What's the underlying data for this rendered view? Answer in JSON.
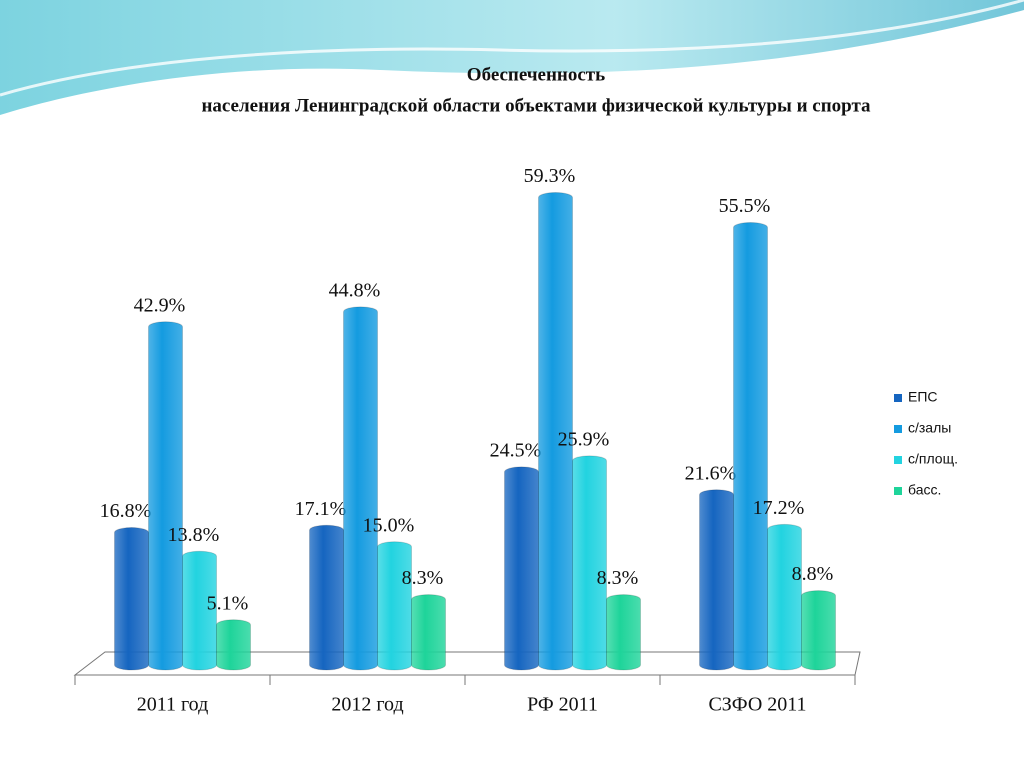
{
  "chart_data": {
    "type": "bar",
    "title": [
      "Обеспеченность",
      "населения Ленинградской области объектами физической культуры и спорта"
    ],
    "categories": [
      "2011 год",
      "2012 год",
      "РФ 2011",
      "СЗФО 2011"
    ],
    "series": [
      {
        "name": "ЕПС",
        "color": "#1565c0",
        "values": [
          16.8,
          17.1,
          24.5,
          21.6
        ],
        "value_labels": [
          "16.8%",
          "17.1%",
          "24.5%",
          "21.6%"
        ]
      },
      {
        "name": "с/залы",
        "color": "#149be0",
        "values": [
          42.9,
          44.8,
          59.3,
          55.5
        ],
        "value_labels": [
          "42.9%",
          "44.8%",
          "59.3%",
          "55.5%"
        ]
      },
      {
        "name": "с/площ.",
        "color": "#22d3e0",
        "values": [
          13.8,
          15.0,
          25.9,
          17.2
        ],
        "value_labels": [
          "13.8%",
          "15.0%",
          "25.9%",
          "17.2%"
        ]
      },
      {
        "name": "басс.",
        "color": "#1ed49a",
        "values": [
          5.1,
          8.3,
          8.3,
          8.8
        ],
        "value_labels": [
          "5.1%",
          "8.3%",
          "8.3%",
          "8.8%"
        ]
      }
    ],
    "ylim": [
      0,
      60
    ],
    "legend": "right"
  }
}
